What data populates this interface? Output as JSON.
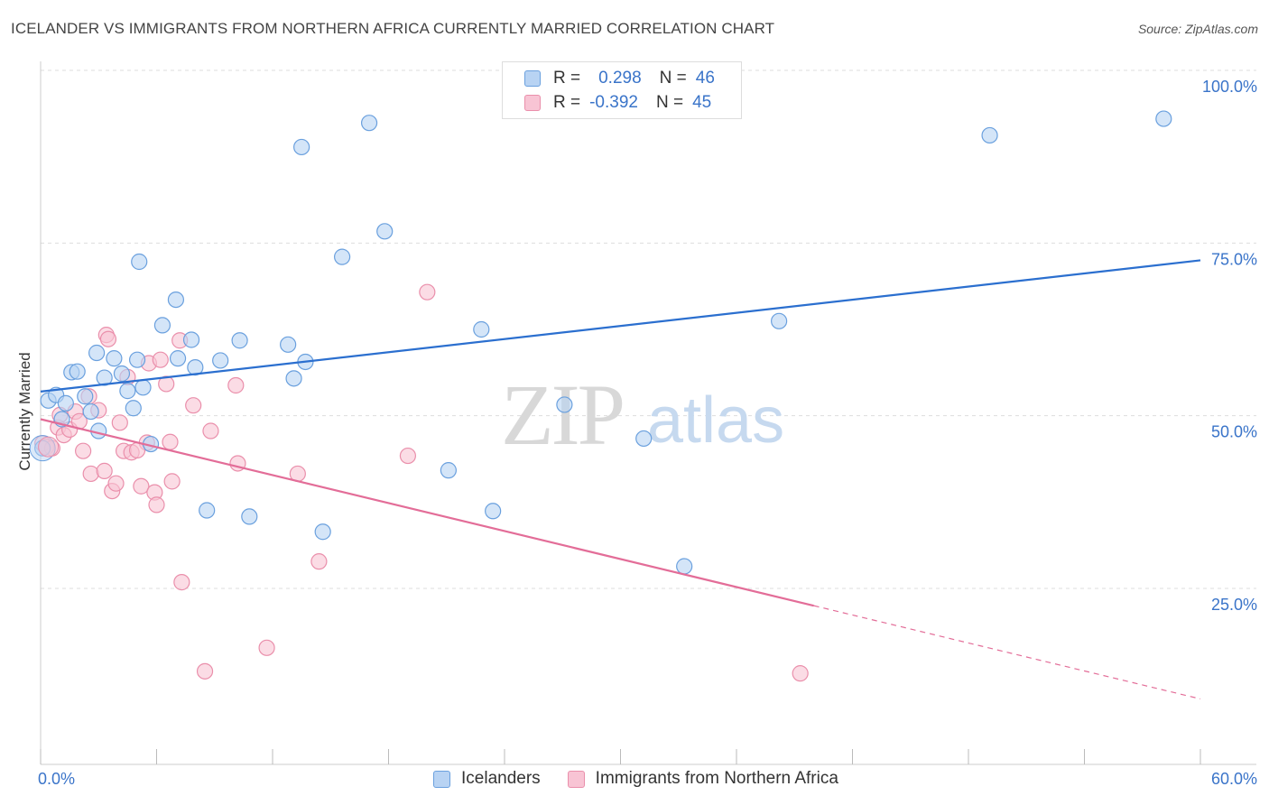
{
  "title": "ICELANDER VS IMMIGRANTS FROM NORTHERN AFRICA CURRENTLY MARRIED CORRELATION CHART",
  "source": "Source: ZipAtlas.com",
  "watermark": {
    "zip": "ZIP",
    "atlas": "atlas"
  },
  "colors": {
    "blue_fill": "#b8d3f3",
    "blue_stroke": "#6aa0de",
    "blue_line": "#2b6fcf",
    "pink_fill": "#f8c4d4",
    "pink_stroke": "#ea8fab",
    "pink_line": "#e36d98",
    "tick_label": "#3a74c9",
    "grid": "#dddddd"
  },
  "legend": {
    "rows": [
      {
        "r_label": "R =",
        "r_value": "0.298",
        "n_label": "N =",
        "n_value": "46"
      },
      {
        "r_label": "R =",
        "r_value": "-0.392",
        "n_label": "N =",
        "n_value": "45"
      }
    ]
  },
  "bottom_legend": [
    "Icelanders",
    "Immigrants from Northern Africa"
  ],
  "chart_data": {
    "type": "scatter",
    "title": "ICELANDER VS IMMIGRANTS FROM NORTHERN AFRICA CURRENTLY MARRIED CORRELATION CHART",
    "xlabel": "",
    "ylabel": "Currently Married",
    "xlim": [
      0,
      60
    ],
    "ylim": [
      0,
      105
    ],
    "x_tick_labels": [
      "0.0%",
      "60.0%"
    ],
    "y_ticks": [
      25,
      50,
      75,
      100
    ],
    "y_tick_labels": [
      "25.0%",
      "50.0%",
      "75.0%",
      "100.0%"
    ],
    "grid": true,
    "legend_position": "top-center",
    "series": [
      {
        "name": "Icelanders",
        "r": 0.298,
        "n": 46,
        "trend": {
          "x": [
            0,
            60
          ],
          "y": [
            53.5,
            72.5
          ]
        },
        "points": [
          [
            0.1,
            45.3
          ],
          [
            0.4,
            52.2
          ],
          [
            0.8,
            53.0
          ],
          [
            1.1,
            49.5
          ],
          [
            1.3,
            51.8
          ],
          [
            1.6,
            56.3
          ],
          [
            1.9,
            56.4
          ],
          [
            2.3,
            52.8
          ],
          [
            2.6,
            50.6
          ],
          [
            2.9,
            59.1
          ],
          [
            3.0,
            47.8
          ],
          [
            3.3,
            55.5
          ],
          [
            3.8,
            58.3
          ],
          [
            4.2,
            56.1
          ],
          [
            4.5,
            53.6
          ],
          [
            4.8,
            51.1
          ],
          [
            5.0,
            58.1
          ],
          [
            5.1,
            72.3
          ],
          [
            5.3,
            54.1
          ],
          [
            5.7,
            45.9
          ],
          [
            6.3,
            63.1
          ],
          [
            7.0,
            66.8
          ],
          [
            7.1,
            58.3
          ],
          [
            7.8,
            61.0
          ],
          [
            8.0,
            57.0
          ],
          [
            8.6,
            36.3
          ],
          [
            9.3,
            58.0
          ],
          [
            10.3,
            60.9
          ],
          [
            10.8,
            35.4
          ],
          [
            12.8,
            60.3
          ],
          [
            13.1,
            55.4
          ],
          [
            13.5,
            88.9
          ],
          [
            13.7,
            57.8
          ],
          [
            14.6,
            33.2
          ],
          [
            15.6,
            73.0
          ],
          [
            17.0,
            92.4
          ],
          [
            17.8,
            76.7
          ],
          [
            21.1,
            42.1
          ],
          [
            22.8,
            62.5
          ],
          [
            23.4,
            36.2
          ],
          [
            27.1,
            51.6
          ],
          [
            31.2,
            46.7
          ],
          [
            33.3,
            28.2
          ],
          [
            38.2,
            63.7
          ],
          [
            49.1,
            90.6
          ],
          [
            58.1,
            93.0
          ]
        ]
      },
      {
        "name": "Immigrants from Northern Africa",
        "r": -0.392,
        "n": 45,
        "trend": {
          "x": [
            0,
            40
          ],
          "y": [
            49.5,
            22.5
          ]
        },
        "trend_dashed": {
          "x": [
            40,
            60
          ],
          "y": [
            22.5,
            9.0
          ]
        },
        "points": [
          [
            0.1,
            46.0
          ],
          [
            0.3,
            45.5
          ],
          [
            0.6,
            45.3
          ],
          [
            0.9,
            48.3
          ],
          [
            1.0,
            50.1
          ],
          [
            1.2,
            47.2
          ],
          [
            1.5,
            48.0
          ],
          [
            1.8,
            50.6
          ],
          [
            2.0,
            49.2
          ],
          [
            2.2,
            44.9
          ],
          [
            2.5,
            52.8
          ],
          [
            2.6,
            41.6
          ],
          [
            3.0,
            50.8
          ],
          [
            3.3,
            42.0
          ],
          [
            3.4,
            61.7
          ],
          [
            3.5,
            61.1
          ],
          [
            3.7,
            39.1
          ],
          [
            3.9,
            40.2
          ],
          [
            4.3,
            44.9
          ],
          [
            4.5,
            55.6
          ],
          [
            4.7,
            44.7
          ],
          [
            5.2,
            39.8
          ],
          [
            5.5,
            46.1
          ],
          [
            5.6,
            57.6
          ],
          [
            5.9,
            38.9
          ],
          [
            6.0,
            37.1
          ],
          [
            6.2,
            58.1
          ],
          [
            6.5,
            54.6
          ],
          [
            6.7,
            46.2
          ],
          [
            6.8,
            40.5
          ],
          [
            7.2,
            60.9
          ],
          [
            7.3,
            25.9
          ],
          [
            7.9,
            51.5
          ],
          [
            8.5,
            13.0
          ],
          [
            8.8,
            47.8
          ],
          [
            10.1,
            54.4
          ],
          [
            10.2,
            43.1
          ],
          [
            11.7,
            16.4
          ],
          [
            13.3,
            41.6
          ],
          [
            14.4,
            28.9
          ],
          [
            19.0,
            44.2
          ],
          [
            20.0,
            67.9
          ],
          [
            39.3,
            12.7
          ],
          [
            5.0,
            45.0
          ],
          [
            4.1,
            49.0
          ]
        ]
      }
    ]
  }
}
